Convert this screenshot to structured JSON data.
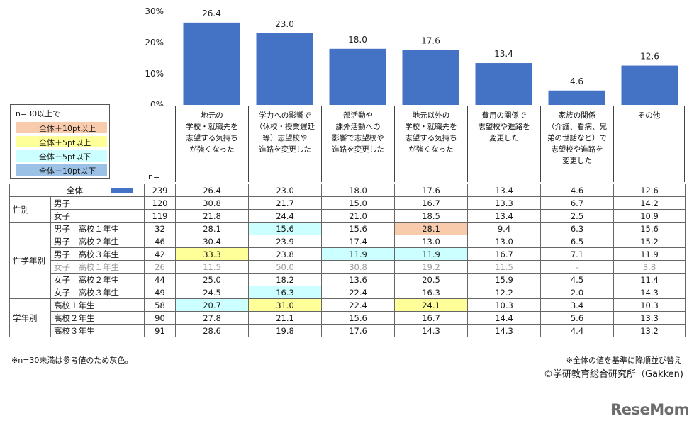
{
  "chart_data": {
    "type": "bar",
    "categories": [
      "地元の\n学校・就職先を\n志望する気持ち\nが強くなった",
      "学力への影響で\n（休校・授業遅延\n等）志望校や\n進路を変更した",
      "部活動や\n課外活動への\n影響で志望校や\n進路を変更した",
      "地元以外の\n学校・就職先を\n志望する気持ち\nが強くなった",
      "費用の関係で\n志望校や進路を\n変更した",
      "家族の関係\n（介護、看病、兄\n弟の世話など）で\n志望校や進路を\n変更した",
      "その他"
    ],
    "values": [
      26.4,
      23.0,
      18.0,
      17.6,
      13.4,
      4.6,
      12.6
    ],
    "value_labels": [
      "26.4",
      "23.0",
      "18.0",
      "17.6",
      "13.4",
      "4.6",
      "12.6"
    ],
    "ylim": [
      0,
      30
    ],
    "yticks": [
      "0%",
      "10%",
      "20%",
      "30%"
    ],
    "ytick_values": [
      0,
      10,
      20,
      30
    ],
    "bar_color": "#4472c4"
  },
  "legend": {
    "title": "n=30以上で",
    "items": [
      {
        "label": "全体＋10pt以上",
        "color": "#f8cbad"
      },
      {
        "label": "全体＋5pt以上",
        "color": "#ffff99"
      },
      {
        "label": "全体－5pt以下",
        "color": "#ccffff"
      },
      {
        "label": "全体－10pt以下",
        "color": "#9bc2e6"
      }
    ]
  },
  "n_header": "n=",
  "table": {
    "rows": [
      {
        "group": "",
        "label": "全体",
        "n": "239",
        "vals": [
          "26.4",
          "23.0",
          "18.0",
          "17.6",
          "13.4",
          "4.6",
          "12.6"
        ],
        "hl": [
          "",
          "",
          "",
          "",
          "",
          "",
          ""
        ],
        "gray": false,
        "total": true
      },
      {
        "group": "性別",
        "label": "男子",
        "n": "120",
        "vals": [
          "30.8",
          "21.7",
          "15.0",
          "16.7",
          "13.3",
          "6.7",
          "14.2"
        ],
        "hl": [
          "",
          "",
          "",
          "",
          "",
          "",
          ""
        ],
        "gray": false
      },
      {
        "group": "",
        "label": "女子",
        "n": "119",
        "vals": [
          "21.8",
          "24.4",
          "21.0",
          "18.5",
          "13.4",
          "2.5",
          "10.9"
        ],
        "hl": [
          "",
          "",
          "",
          "",
          "",
          "",
          ""
        ],
        "gray": false
      },
      {
        "group": "",
        "label": "男子　高校１年生",
        "n": "32",
        "vals": [
          "28.1",
          "15.6",
          "15.6",
          "28.1",
          "9.4",
          "6.3",
          "15.6"
        ],
        "hl": [
          "",
          "dn5",
          "",
          "up10",
          "",
          "",
          ""
        ],
        "gray": false
      },
      {
        "group": "",
        "label": "男子　高校２年生",
        "n": "46",
        "vals": [
          "30.4",
          "23.9",
          "17.4",
          "13.0",
          "13.0",
          "6.5",
          "15.2"
        ],
        "hl": [
          "",
          "",
          "",
          "",
          "",
          "",
          ""
        ],
        "gray": false
      },
      {
        "group": "性学年別",
        "label": "男子　高校３年生",
        "n": "42",
        "vals": [
          "33.3",
          "23.8",
          "11.9",
          "11.9",
          "16.7",
          "7.1",
          "11.9"
        ],
        "hl": [
          "up5",
          "",
          "dn5",
          "dn5",
          "",
          "",
          ""
        ],
        "gray": false
      },
      {
        "group": "",
        "label": "女子　高校１年生",
        "n": "26",
        "vals": [
          "11.5",
          "50.0",
          "30.8",
          "19.2",
          "11.5",
          "-",
          "3.8"
        ],
        "hl": [
          "",
          "",
          "",
          "",
          "",
          "",
          ""
        ],
        "gray": true
      },
      {
        "group": "",
        "label": "女子　高校２年生",
        "n": "44",
        "vals": [
          "25.0",
          "18.2",
          "13.6",
          "20.5",
          "15.9",
          "4.5",
          "11.4"
        ],
        "hl": [
          "",
          "",
          "",
          "",
          "",
          "",
          ""
        ],
        "gray": false
      },
      {
        "group": "",
        "label": "女子　高校３年生",
        "n": "49",
        "vals": [
          "24.5",
          "16.3",
          "22.4",
          "16.3",
          "12.2",
          "2.0",
          "14.3"
        ],
        "hl": [
          "",
          "dn5",
          "",
          "",
          "",
          "",
          ""
        ],
        "gray": false
      },
      {
        "group": "",
        "label": "高校１年生",
        "n": "58",
        "vals": [
          "20.7",
          "31.0",
          "22.4",
          "24.1",
          "10.3",
          "3.4",
          "10.3"
        ],
        "hl": [
          "dn5",
          "up5",
          "",
          "up5",
          "",
          "",
          ""
        ],
        "gray": false
      },
      {
        "group": "学年別",
        "label": "高校２年生",
        "n": "90",
        "vals": [
          "27.8",
          "21.1",
          "15.6",
          "16.7",
          "14.4",
          "5.6",
          "13.3"
        ],
        "hl": [
          "",
          "",
          "",
          "",
          "",
          "",
          ""
        ],
        "gray": false
      },
      {
        "group": "",
        "label": "高校３年生",
        "n": "91",
        "vals": [
          "28.6",
          "19.8",
          "17.6",
          "14.3",
          "14.3",
          "4.4",
          "13.2"
        ],
        "hl": [
          "",
          "",
          "",
          "",
          "",
          "",
          ""
        ],
        "gray": false
      }
    ]
  },
  "notes": {
    "left": "※n=30未満は参考値のため灰色。",
    "right": "※全体の値を基準に降順並び替え",
    "copyright": "©学研教育総合研究所（Gakken)"
  },
  "logo": "ReseMom"
}
